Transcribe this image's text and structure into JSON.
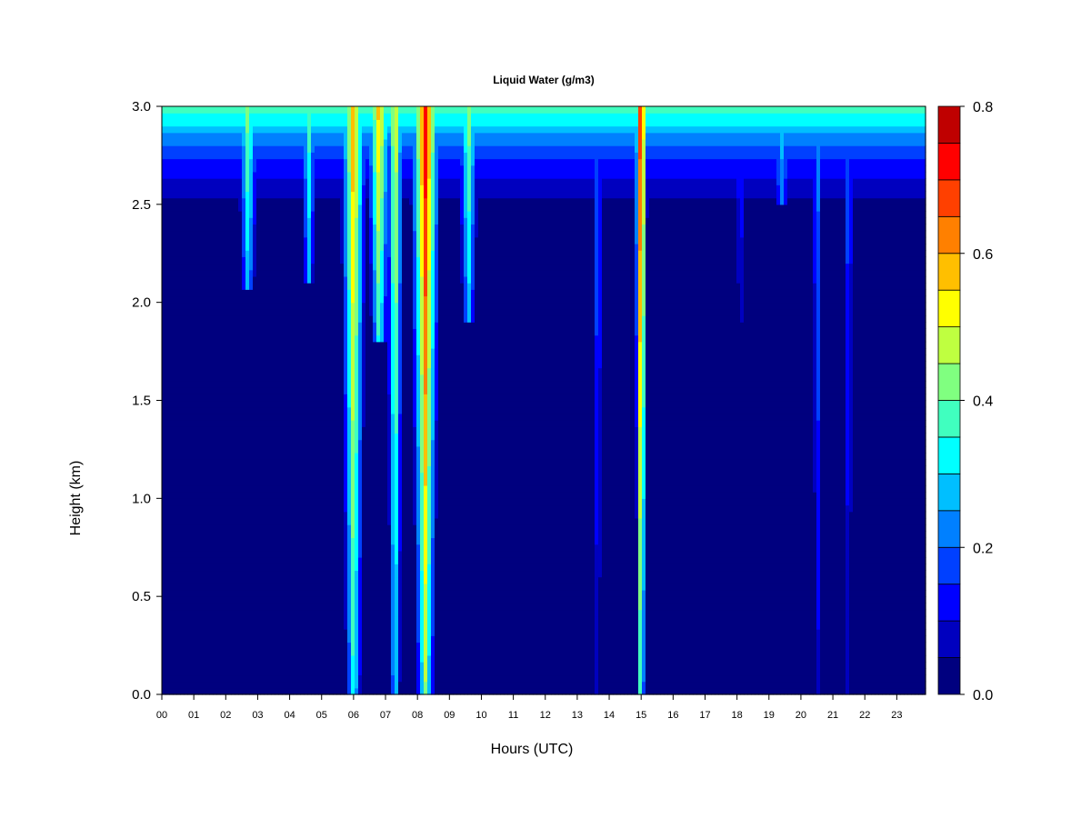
{
  "chart_data": {
    "type": "heatmap",
    "title": "Liquid Water (g/m3)",
    "xlabel": "Hours (UTC)",
    "ylabel": "Height (km)",
    "xlim": [
      0,
      23.9
    ],
    "ylim": [
      0,
      3.0
    ],
    "x_ticks": [
      "00",
      "01",
      "02",
      "03",
      "04",
      "05",
      "06",
      "07",
      "08",
      "09",
      "10",
      "11",
      "12",
      "13",
      "14",
      "15",
      "16",
      "17",
      "18",
      "19",
      "20",
      "21",
      "22",
      "23"
    ],
    "y_ticks": [
      "0.0",
      "0.5",
      "1.0",
      "1.5",
      "2.0",
      "2.5",
      "3.0"
    ],
    "colorbar": {
      "min": 0.0,
      "max": 0.8,
      "ticks": [
        "0.0",
        "0.2",
        "0.4",
        "0.6",
        "0.8"
      ],
      "levels": [
        0.0,
        0.05,
        0.1,
        0.15,
        0.2,
        0.25,
        0.3,
        0.35,
        0.4,
        0.45,
        0.5,
        0.55,
        0.6,
        0.65,
        0.7,
        0.75,
        0.8
      ],
      "colors": [
        "#00007F",
        "#0000BF",
        "#0000FF",
        "#0040FF",
        "#0080FF",
        "#00BFFF",
        "#00FFFF",
        "#40FFBF",
        "#80FF80",
        "#BFFF40",
        "#FFFF00",
        "#FFBF00",
        "#FF8000",
        "#FF4000",
        "#FF0000",
        "#BF0000",
        "#7F0000"
      ]
    },
    "background_layer": {
      "description_values": "base liquid water content by height band (g/m3)",
      "height_km": [
        0.0,
        2.5,
        2.6,
        2.7,
        2.8,
        2.9,
        3.0
      ],
      "value": [
        0.02,
        0.03,
        0.08,
        0.13,
        0.2,
        0.3,
        0.4
      ]
    },
    "features": [
      {
        "hour": 2.7,
        "width_h": 0.25,
        "peak": 0.45,
        "base_km": 2.05
      },
      {
        "hour": 4.6,
        "width_h": 0.2,
        "peak": 0.4,
        "base_km": 2.1
      },
      {
        "hour": 6.0,
        "width_h": 0.3,
        "peak": 0.62,
        "base_km": 0.0
      },
      {
        "hour": 6.8,
        "width_h": 0.3,
        "peak": 0.6,
        "base_km": 1.8
      },
      {
        "hour": 7.3,
        "width_h": 0.2,
        "peak": 0.55,
        "base_km": 0.0
      },
      {
        "hour": 8.25,
        "width_h": 0.35,
        "peak": 0.75,
        "base_km": 0.0
      },
      {
        "hour": 9.6,
        "width_h": 0.25,
        "peak": 0.45,
        "base_km": 1.9
      },
      {
        "hour": 13.65,
        "width_h": 0.08,
        "peak": 0.35,
        "base_km": 0.0
      },
      {
        "hour": 15.0,
        "width_h": 0.15,
        "peak": 0.8,
        "base_km": 0.0
      },
      {
        "hour": 18.1,
        "width_h": 0.08,
        "peak": 0.3,
        "base_km": 1.9
      },
      {
        "hour": 19.4,
        "width_h": 0.3,
        "peak": 0.3,
        "base_km": 2.5
      },
      {
        "hour": 20.5,
        "width_h": 0.08,
        "peak": 0.35,
        "base_km": 0.0
      },
      {
        "hour": 21.5,
        "width_h": 0.08,
        "peak": 0.3,
        "base_km": 0.0
      }
    ]
  }
}
